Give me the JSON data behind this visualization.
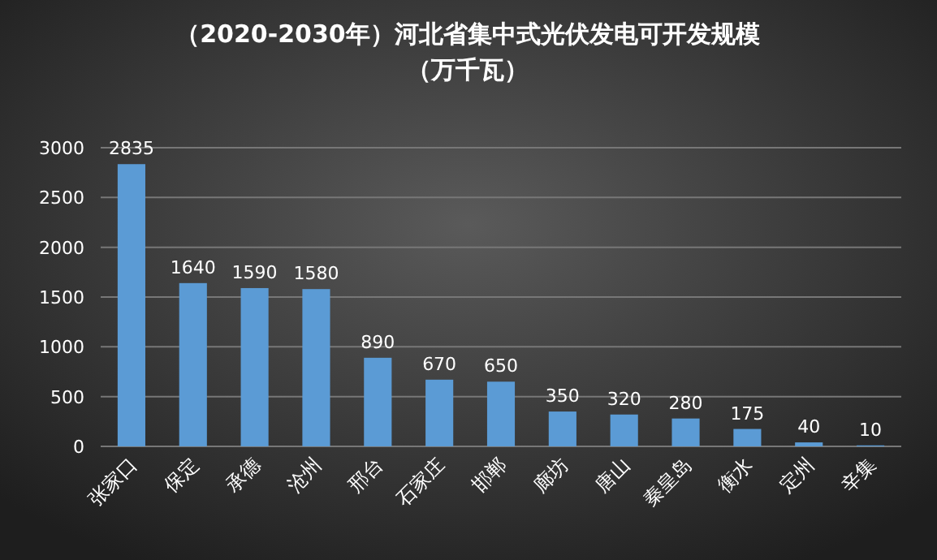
{
  "chart_data": {
    "type": "bar",
    "title": "（2020-2030年）河北省集中式光伏发电可开发规模",
    "subtitle": "（万千瓦）",
    "categories": [
      "张家口",
      "保定",
      "承德",
      "沧州",
      "邢台",
      "石家庄",
      "邯郸",
      "廊坊",
      "唐山",
      "秦皇岛",
      "衡水",
      "定州",
      "辛集"
    ],
    "values": [
      2835,
      1640,
      1590,
      1580,
      890,
      670,
      650,
      350,
      320,
      280,
      175,
      40,
      10
    ],
    "color": "#5b9bd5",
    "ylim": [
      0,
      3000
    ],
    "yticks": [
      0,
      500,
      1000,
      1500,
      2000,
      2500,
      3000
    ],
    "grid": "y",
    "data_labels": true
  }
}
